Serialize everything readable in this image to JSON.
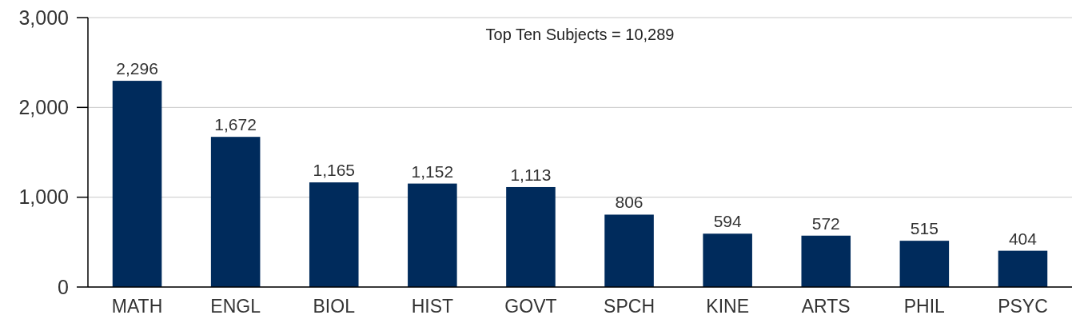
{
  "chart_data": {
    "type": "bar",
    "categories": [
      "MATH",
      "ENGL",
      "BIOL",
      "HIST",
      "GOVT",
      "SPCH",
      "KINE",
      "ARTS",
      "PHIL",
      "PSYC"
    ],
    "values": [
      2296,
      1672,
      1165,
      1152,
      1113,
      806,
      594,
      572,
      515,
      404
    ],
    "color": "#002b5c",
    "ylim": [
      0,
      3000
    ],
    "yticks": [
      {
        "value": 0,
        "label": "0"
      },
      {
        "value": 1000,
        "label": "1,000"
      },
      {
        "value": 2000,
        "label": "2,000"
      },
      {
        "value": 3000,
        "label": "3,000"
      }
    ],
    "value_labels": [
      "2,296",
      "1,672",
      "1,165",
      "1,152",
      "1,113",
      "806",
      "594",
      "572",
      "515",
      "404"
    ],
    "grid": "y",
    "annotations": [
      "Top Ten Subjects = 10,289"
    ]
  }
}
